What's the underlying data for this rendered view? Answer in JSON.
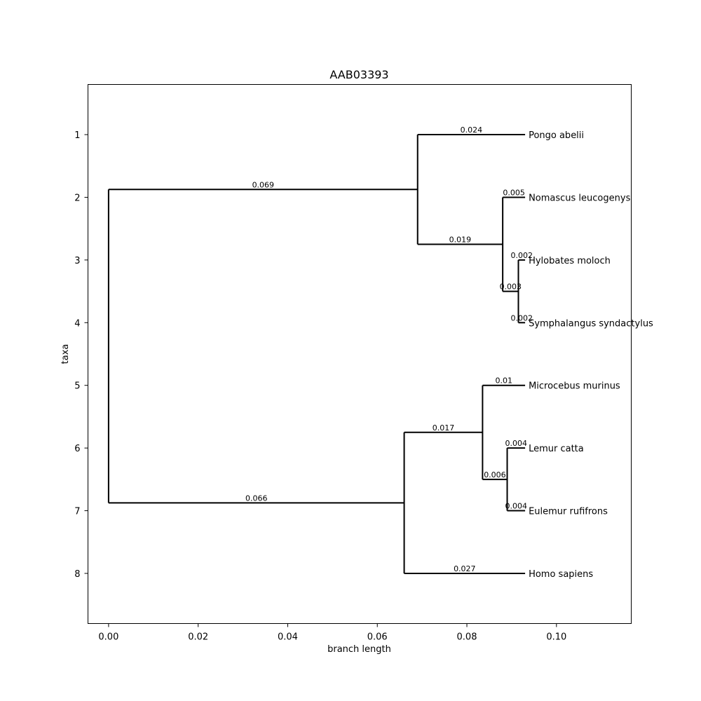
{
  "chart_data": {
    "type": "phylogenetic-tree",
    "title": "AAB03393",
    "xlabel": "branch length",
    "ylabel": "taxa",
    "xlim": [
      -0.0046,
      0.1167
    ],
    "ylim": [
      8.8,
      0.2
    ],
    "xticks": [
      0.0,
      0.02,
      0.04,
      0.06,
      0.08,
      0.1
    ],
    "xtick_labels": [
      "0.00",
      "0.02",
      "0.04",
      "0.06",
      "0.08",
      "0.10"
    ],
    "yticks": [
      1,
      2,
      3,
      4,
      5,
      6,
      7,
      8
    ],
    "ytick_labels": [
      "1",
      "2",
      "3",
      "4",
      "5",
      "6",
      "7",
      "8"
    ],
    "grid": false,
    "nodes": [
      {
        "id": "root",
        "parent": null,
        "x": 0.0,
        "y": 4.375,
        "y_low": 1.875,
        "y_high": 6.875
      },
      {
        "id": "n_ape",
        "parent": "root",
        "x": 0.069,
        "y": 1.875,
        "label": "0.069",
        "y_low": 1,
        "y_high": 2.75
      },
      {
        "id": "n_hylo",
        "parent": "n_ape",
        "x": 0.088,
        "y": 2.75,
        "label": "0.019",
        "y_low": 2,
        "y_high": 3.5
      },
      {
        "id": "n_hylo2",
        "parent": "n_hylo",
        "x": 0.0915,
        "y": 3.5,
        "label": "0.003",
        "y_low": 3,
        "y_high": 4
      },
      {
        "id": "n_prosim",
        "parent": "root",
        "x": 0.066,
        "y": 6.875,
        "label": "0.066",
        "y_low": 5.75,
        "y_high": 8
      },
      {
        "id": "n_lemur",
        "parent": "n_prosim",
        "x": 0.0835,
        "y": 5.75,
        "label": "0.017",
        "y_low": 5,
        "y_high": 6.5
      },
      {
        "id": "n_lemur2",
        "parent": "n_lemur",
        "x": 0.089,
        "y": 6.5,
        "label": "0.006",
        "y_low": 6,
        "y_high": 7
      }
    ],
    "leaves": [
      {
        "id": "pongo",
        "parent": "n_ape",
        "x": 0.093,
        "y": 1,
        "name": "Pongo abelii",
        "label": "0.024"
      },
      {
        "id": "nomascus",
        "parent": "n_hylo",
        "x": 0.093,
        "y": 2,
        "name": "Nomascus leucogenys",
        "label": "0.005"
      },
      {
        "id": "hylobates",
        "parent": "n_hylo2",
        "x": 0.093,
        "y": 3,
        "name": "Hylobates moloch",
        "label": "0.002"
      },
      {
        "id": "symphalangus",
        "parent": "n_hylo2",
        "x": 0.093,
        "y": 4,
        "name": "Symphalangus syndactylus",
        "label": "0.002"
      },
      {
        "id": "microcebus",
        "parent": "n_lemur",
        "x": 0.093,
        "y": 5,
        "name": "Microcebus murinus",
        "label": "0.01"
      },
      {
        "id": "lemur",
        "parent": "n_lemur2",
        "x": 0.093,
        "y": 6,
        "name": "Lemur catta",
        "label": "0.004"
      },
      {
        "id": "eulemur",
        "parent": "n_lemur2",
        "x": 0.093,
        "y": 7,
        "name": "Eulemur rufifrons",
        "label": "0.004"
      },
      {
        "id": "homo",
        "parent": "n_prosim",
        "x": 0.093,
        "y": 8,
        "name": "Homo sapiens",
        "label": "0.027"
      }
    ]
  }
}
